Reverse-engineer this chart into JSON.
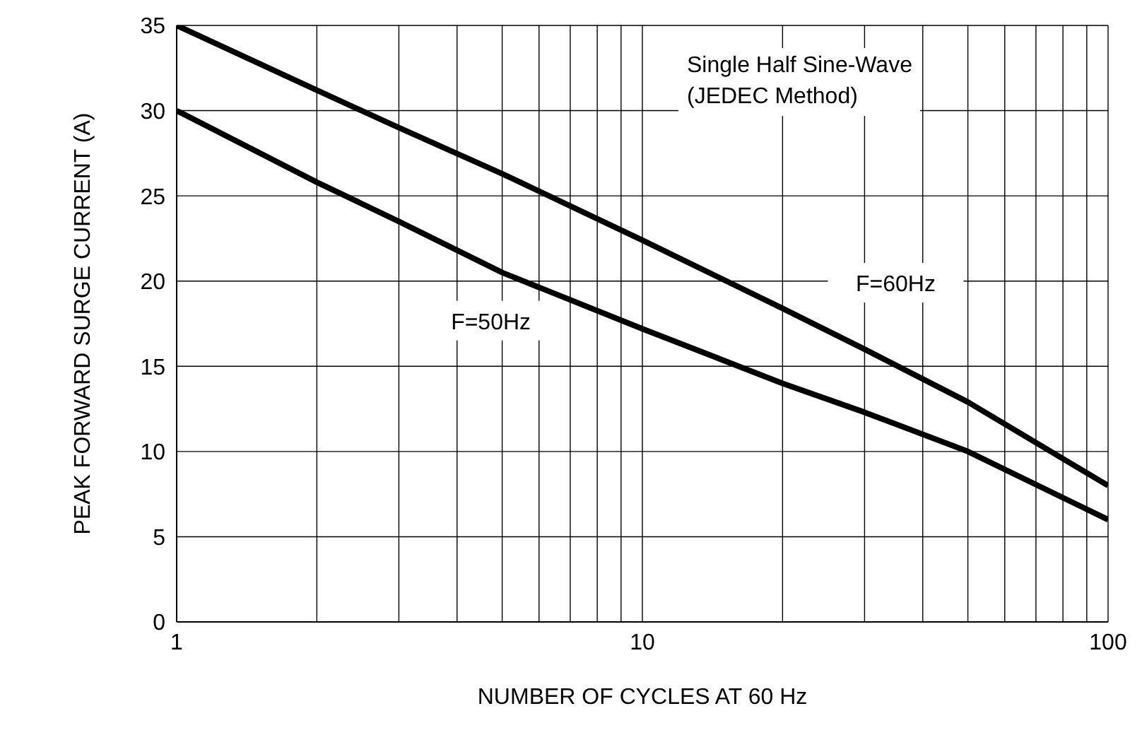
{
  "chart_data": {
    "type": "line",
    "xlabel": "NUMBER OF CYCLES AT 60 Hz",
    "ylabel": "PEAK FORWARD SURGE CURRENT (A)",
    "log": "x",
    "grid": true,
    "legend": false,
    "marker": "none",
    "line_style": "solid",
    "xlim": [
      1,
      100
    ],
    "xticks": [
      1,
      {
        "value": 2,
        "label": null
      },
      {
        "value": 3,
        "label": null
      },
      {
        "value": 4,
        "label": null
      },
      {
        "value": 5,
        "label": null
      },
      {
        "value": 6,
        "label": null
      },
      {
        "value": 7,
        "label": null
      },
      {
        "value": 8,
        "label": null
      },
      {
        "value": 9,
        "label": null
      },
      10,
      {
        "value": 20,
        "label": null
      },
      {
        "value": 30,
        "label": null
      },
      {
        "value": 40,
        "label": null
      },
      {
        "value": 50,
        "label": null
      },
      {
        "value": 60,
        "label": null
      },
      {
        "value": 70,
        "label": null
      },
      {
        "value": 80,
        "label": null
      },
      {
        "value": 90,
        "label": null
      },
      100
    ],
    "ylim": [
      0,
      35
    ],
    "yticks": [
      0,
      5,
      10,
      15,
      20,
      25,
      30,
      35
    ],
    "series": [
      {
        "name": "F=60Hz",
        "color": "#000000",
        "x": [
          1,
          2,
          3,
          5,
          10,
          20,
          30,
          50,
          100
        ],
        "values": [
          35,
          31.2,
          29,
          26.3,
          22.4,
          18.4,
          16,
          12.9,
          8
        ]
      },
      {
        "name": "F=50Hz",
        "color": "#000000",
        "x": [
          1,
          2,
          3,
          5,
          10,
          20,
          30,
          50,
          100
        ],
        "values": [
          30,
          25.8,
          23.5,
          20.5,
          17.2,
          14,
          12.3,
          10,
          6
        ]
      }
    ],
    "annotations": [
      "Single Half Sine-Wave",
      "(JEDEC Method)"
    ]
  }
}
